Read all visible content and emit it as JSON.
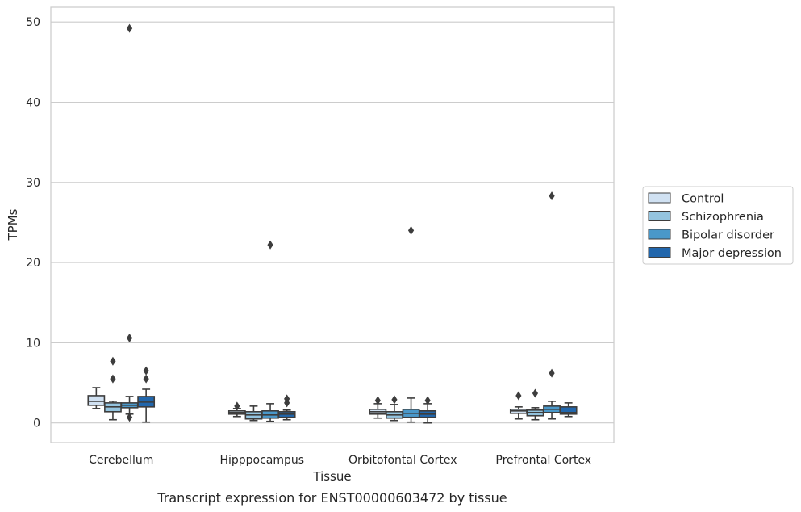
{
  "chart_data": {
    "type": "boxplot",
    "title": "",
    "caption": "Transcript expression for ENST00000603472 by tissue",
    "xlabel": "Tissue",
    "ylabel": "TPMs",
    "ylim": [
      -2.4,
      51.8
    ],
    "yticks": [
      0,
      10,
      20,
      30,
      40,
      50
    ],
    "grid": "horizontal",
    "legend_position": "right",
    "categories": [
      "Cerebellum",
      "Hipppocampus",
      "Orbitofontal Cortex",
      "Prefrontal Cortex"
    ],
    "series": [
      {
        "name": "Control",
        "color": "#d0e1f2",
        "boxes": [
          {
            "whislo": 1.8,
            "q1": 2.2,
            "med": 2.7,
            "q3": 3.4,
            "whishi": 4.4,
            "fliers": []
          },
          {
            "whislo": 0.8,
            "q1": 1.1,
            "med": 1.3,
            "q3": 1.5,
            "whishi": 1.8,
            "fliers": [
              2.1
            ]
          },
          {
            "whislo": 0.6,
            "q1": 1.1,
            "med": 1.4,
            "q3": 1.7,
            "whishi": 2.4,
            "fliers": [
              2.8
            ]
          },
          {
            "whislo": 0.5,
            "q1": 1.2,
            "med": 1.5,
            "q3": 1.7,
            "whishi": 2.0,
            "fliers": [
              3.4
            ]
          }
        ]
      },
      {
        "name": "Schizophrenia",
        "color": "#94c4df",
        "boxes": [
          {
            "whislo": 0.4,
            "q1": 1.4,
            "med": 2.0,
            "q3": 2.5,
            "whishi": 2.7,
            "fliers": [
              5.5,
              7.7
            ]
          },
          {
            "whislo": 0.3,
            "q1": 0.5,
            "med": 1.0,
            "q3": 1.4,
            "whishi": 2.1,
            "fliers": []
          },
          {
            "whislo": 0.3,
            "q1": 0.6,
            "med": 1.0,
            "q3": 1.4,
            "whishi": 2.3,
            "fliers": [
              2.9
            ]
          },
          {
            "whislo": 0.4,
            "q1": 0.9,
            "med": 1.3,
            "q3": 1.6,
            "whishi": 1.9,
            "fliers": [
              3.7
            ]
          }
        ]
      },
      {
        "name": "Bipolar disorder",
        "color": "#4a98c9",
        "boxes": [
          {
            "whislo": 1.1,
            "q1": 1.9,
            "med": 2.2,
            "q3": 2.5,
            "whishi": 3.3,
            "fliers": [
              0.7,
              10.6,
              49.2
            ]
          },
          {
            "whislo": 0.2,
            "q1": 0.6,
            "med": 1.0,
            "q3": 1.5,
            "whishi": 2.4,
            "fliers": [
              22.2
            ]
          },
          {
            "whislo": 0.1,
            "q1": 0.7,
            "med": 1.2,
            "q3": 1.7,
            "whishi": 3.1,
            "fliers": [
              24.0
            ]
          },
          {
            "whislo": 0.5,
            "q1": 1.3,
            "med": 1.7,
            "q3": 2.1,
            "whishi": 2.7,
            "fliers": [
              6.2,
              28.3
            ]
          }
        ]
      },
      {
        "name": "Major depression",
        "color": "#2166ac",
        "boxes": [
          {
            "whislo": 0.1,
            "q1": 2.0,
            "med": 2.6,
            "q3": 3.3,
            "whishi": 4.2,
            "fliers": [
              5.5,
              6.5
            ]
          },
          {
            "whislo": 0.4,
            "q1": 0.7,
            "med": 1.1,
            "q3": 1.4,
            "whishi": 1.6,
            "fliers": [
              2.5,
              3.0
            ]
          },
          {
            "whislo": 0.0,
            "q1": 0.7,
            "med": 1.1,
            "q3": 1.5,
            "whishi": 2.4,
            "fliers": [
              2.8
            ]
          },
          {
            "whislo": 0.8,
            "q1": 1.1,
            "med": 1.3,
            "q3": 2.0,
            "whishi": 2.5,
            "fliers": []
          }
        ]
      }
    ]
  }
}
